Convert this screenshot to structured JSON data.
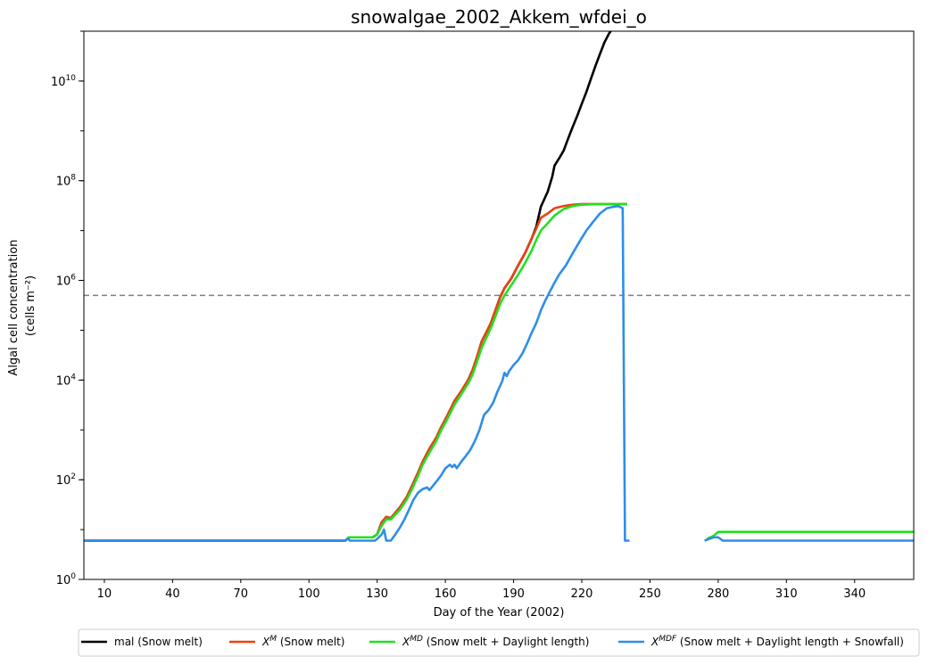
{
  "chart_data": {
    "type": "line",
    "title": "snowalgae_2002_Akkem_wfdei_o",
    "xlabel": "Day of the Year (2002)",
    "ylabel_line1": "Algal cell concentration",
    "ylabel_line2": "(cells m⁻²)",
    "yscale": "log",
    "xlim": [
      1,
      366
    ],
    "ylim": [
      1,
      100000000000
    ],
    "xticks": [
      10,
      40,
      70,
      100,
      130,
      160,
      190,
      220,
      250,
      280,
      310,
      340
    ],
    "yticks": [
      {
        "value": 1,
        "base": "10",
        "exp": "0"
      },
      {
        "value": 100,
        "base": "10",
        "exp": "2"
      },
      {
        "value": 10000,
        "base": "10",
        "exp": "4"
      },
      {
        "value": 1000000,
        "base": "10",
        "exp": "6"
      },
      {
        "value": 100000000,
        "base": "10",
        "exp": "8"
      },
      {
        "value": 10000000000,
        "base": "10",
        "exp": "10"
      }
    ],
    "threshold": {
      "value": 500000,
      "style": "dashed",
      "color": "#808080"
    },
    "grid": false,
    "legend_position": "bottom-outside",
    "series": [
      {
        "name": "mal (Snow melt)",
        "legend": {
          "base": "mal",
          "sup": "",
          "rest": " (Snow melt)"
        },
        "color": "#000000",
        "segments": [
          [
            [
              1,
              6
            ],
            [
              116,
              6
            ],
            [
              117,
              6.6
            ],
            [
              118,
              7
            ],
            [
              128,
              7
            ],
            [
              130,
              8
            ],
            [
              132,
              14
            ],
            [
              134,
              18
            ],
            [
              136,
              17
            ],
            [
              140,
              28
            ],
            [
              143,
              45
            ],
            [
              145,
              70
            ],
            [
              148,
              140
            ],
            [
              150,
              230
            ],
            [
              153,
              420
            ],
            [
              156,
              700
            ],
            [
              158,
              1100
            ],
            [
              161,
              2000
            ],
            [
              164,
              3800
            ],
            [
              167,
              6000
            ],
            [
              170,
              10000
            ],
            [
              172,
              16000
            ],
            [
              174,
              30000
            ],
            [
              176,
              60000
            ],
            [
              178,
              90000
            ],
            [
              180,
              140000
            ],
            [
              182,
              250000
            ],
            [
              184,
              450000
            ],
            [
              186,
              700000
            ],
            [
              189,
              1100000
            ],
            [
              192,
              2000000
            ],
            [
              195,
              3500000
            ],
            [
              198,
              7000000
            ],
            [
              200,
              12000000
            ],
            [
              202,
              30000000
            ],
            [
              205,
              60000000
            ],
            [
              207,
              120000000
            ],
            [
              208,
              200000000
            ],
            [
              210,
              280000000
            ],
            [
              212,
              400000000
            ],
            [
              214,
              700000000
            ],
            [
              216,
              1200000000
            ],
            [
              218,
              2000000000
            ],
            [
              220,
              3500000000
            ],
            [
              222,
              6000000000
            ],
            [
              224,
              11000000000
            ],
            [
              226,
              20000000000
            ],
            [
              228,
              35000000000
            ],
            [
              230,
              60000000000
            ],
            [
              232,
              90000000000
            ],
            [
              234,
              120000000000
            ]
          ]
        ]
      },
      {
        "name": "X^M (Snow melt)",
        "legend": {
          "base": "X",
          "sup": "M",
          "rest": " (Snow melt)"
        },
        "color": "#ee4010",
        "segments": [
          [
            [
              117,
              7
            ],
            [
              128,
              7
            ],
            [
              130,
              8
            ],
            [
              132,
              14
            ],
            [
              134,
              18
            ],
            [
              136,
              17
            ],
            [
              140,
              28
            ],
            [
              143,
              45
            ],
            [
              145,
              70
            ],
            [
              148,
              140
            ],
            [
              150,
              230
            ],
            [
              153,
              420
            ],
            [
              156,
              700
            ],
            [
              158,
              1100
            ],
            [
              161,
              2000
            ],
            [
              164,
              3800
            ],
            [
              167,
              6000
            ],
            [
              170,
              10000
            ],
            [
              172,
              16000
            ],
            [
              174,
              30000
            ],
            [
              176,
              60000
            ],
            [
              178,
              90000
            ],
            [
              180,
              140000
            ],
            [
              182,
              250000
            ],
            [
              184,
              450000
            ],
            [
              186,
              700000
            ],
            [
              189,
              1100000
            ],
            [
              192,
              2000000
            ],
            [
              195,
              3500000
            ],
            [
              198,
              7000000
            ],
            [
              200,
              11000000
            ],
            [
              202,
              18000000
            ],
            [
              205,
              22000000
            ],
            [
              208,
              28000000
            ],
            [
              212,
              31000000
            ],
            [
              216,
              33000000
            ],
            [
              220,
              34000000
            ],
            [
              226,
              34000000
            ],
            [
              232,
              34000000
            ],
            [
              240,
              34000000
            ]
          ]
        ]
      },
      {
        "name": "X^MD (Snow melt + Daylight length)",
        "legend": {
          "base": "X",
          "sup": "MD",
          "rest": " (Snow melt + Daylight length)"
        },
        "color": "#22e022",
        "segments": [
          [
            [
              117,
              7
            ],
            [
              128,
              7
            ],
            [
              130,
              8
            ],
            [
              132,
              12
            ],
            [
              134,
              16
            ],
            [
              136,
              16
            ],
            [
              140,
              25
            ],
            [
              143,
              40
            ],
            [
              145,
              60
            ],
            [
              148,
              120
            ],
            [
              150,
              200
            ],
            [
              153,
              350
            ],
            [
              156,
              600
            ],
            [
              158,
              950
            ],
            [
              161,
              1700
            ],
            [
              164,
              3200
            ],
            [
              167,
              5200
            ],
            [
              170,
              8500
            ],
            [
              172,
              13000
            ],
            [
              174,
              24000
            ],
            [
              176,
              45000
            ],
            [
              178,
              70000
            ],
            [
              180,
              110000
            ],
            [
              182,
              190000
            ],
            [
              184,
              330000
            ],
            [
              186,
              500000
            ],
            [
              189,
              800000
            ],
            [
              192,
              1300000
            ],
            [
              195,
              2200000
            ],
            [
              198,
              4000000
            ],
            [
              200,
              6500000
            ],
            [
              202,
              10000000
            ],
            [
              205,
              14000000
            ],
            [
              208,
              20000000
            ],
            [
              212,
              27000000
            ],
            [
              216,
              31000000
            ],
            [
              220,
              33000000
            ],
            [
              226,
              34000000
            ],
            [
              232,
              34000000
            ],
            [
              240,
              34000000
            ]
          ],
          [
            [
              275,
              6.5
            ],
            [
              278,
              7.5
            ],
            [
              280,
              9
            ],
            [
              300,
              9
            ],
            [
              320,
              9
            ],
            [
              340,
              9
            ],
            [
              366,
              9
            ]
          ]
        ]
      },
      {
        "name": "X^MDF (Snow melt + Daylight length + Snowfall)",
        "legend": {
          "base": "X",
          "sup": "MDF",
          "rest": " (Snow melt + Daylight length + Snowfall)"
        },
        "color": "#2e8ee8",
        "segments": [
          [
            [
              1,
              6
            ],
            [
              116,
              6
            ],
            [
              117,
              6.6
            ],
            [
              118,
              6
            ],
            [
              129,
              6
            ],
            [
              130,
              6.5
            ],
            [
              132,
              8
            ],
            [
              133,
              10
            ],
            [
              134,
              6
            ],
            [
              136,
              6
            ],
            [
              138,
              8
            ],
            [
              140,
              11
            ],
            [
              142,
              16
            ],
            [
              144,
              25
            ],
            [
              146,
              40
            ],
            [
              148,
              55
            ],
            [
              150,
              65
            ],
            [
              152,
              70
            ],
            [
              153,
              62
            ],
            [
              155,
              80
            ],
            [
              158,
              120
            ],
            [
              160,
              170
            ],
            [
              162,
              200
            ],
            [
              163,
              180
            ],
            [
              164,
              200
            ],
            [
              165,
              170
            ],
            [
              167,
              230
            ],
            [
              169,
              300
            ],
            [
              171,
              400
            ],
            [
              173,
              600
            ],
            [
              175,
              1000
            ],
            [
              177,
              2000
            ],
            [
              179,
              2500
            ],
            [
              181,
              3500
            ],
            [
              183,
              6000
            ],
            [
              185,
              9500
            ],
            [
              186,
              14000
            ],
            [
              187,
              12000
            ],
            [
              188,
              15000
            ],
            [
              190,
              20000
            ],
            [
              192,
              25000
            ],
            [
              194,
              35000
            ],
            [
              196,
              55000
            ],
            [
              198,
              90000
            ],
            [
              200,
              140000
            ],
            [
              202,
              250000
            ],
            [
              204,
              400000
            ],
            [
              206,
              600000
            ],
            [
              208,
              900000
            ],
            [
              210,
              1300000
            ],
            [
              213,
              2000000
            ],
            [
              216,
              3500000
            ],
            [
              219,
              6000000
            ],
            [
              222,
              10000000
            ],
            [
              225,
              15000000
            ],
            [
              228,
              22000000
            ],
            [
              231,
              28000000
            ],
            [
              234,
              30000000
            ],
            [
              236,
              31000000
            ],
            [
              238,
              28000000
            ],
            [
              239,
              6
            ],
            [
              241,
              6
            ]
          ],
          [
            [
              274,
              6
            ],
            [
              276,
              6.5
            ],
            [
              278,
              7
            ],
            [
              280,
              7
            ],
            [
              282,
              6
            ],
            [
              300,
              6
            ],
            [
              320,
              6
            ],
            [
              340,
              6
            ],
            [
              366,
              6
            ]
          ]
        ]
      }
    ]
  }
}
